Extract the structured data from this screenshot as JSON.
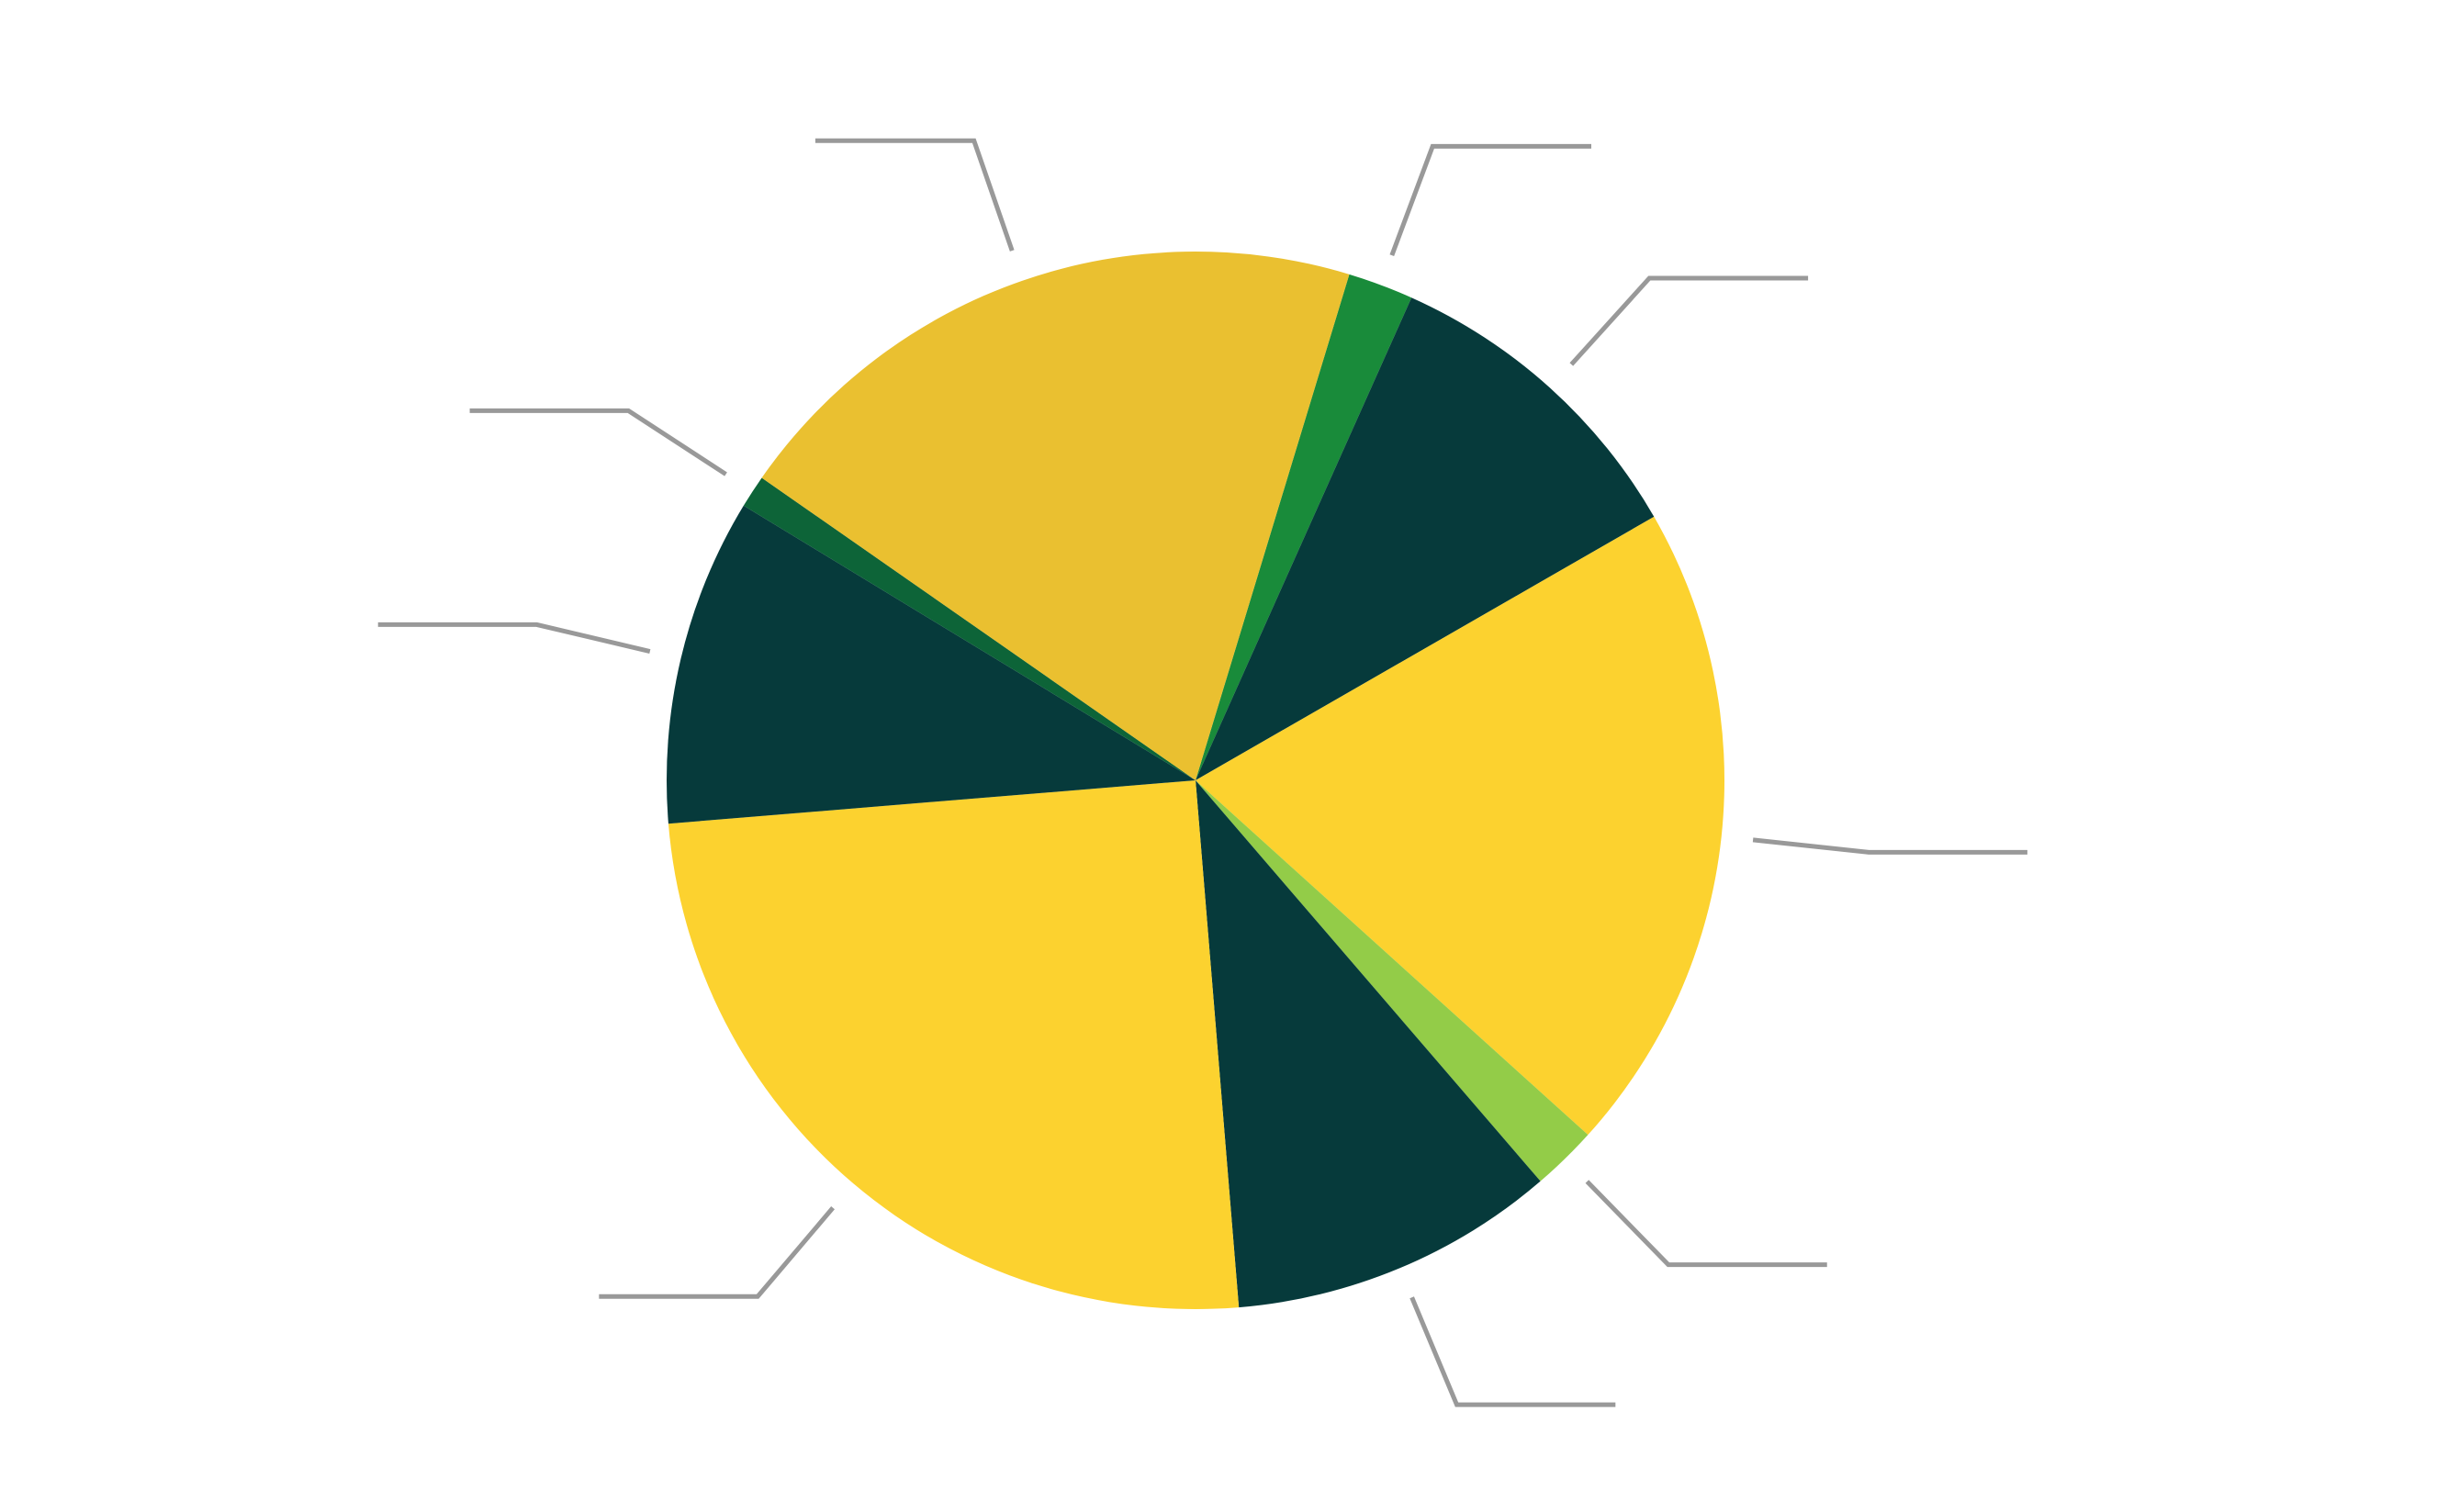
{
  "chart_data": {
    "type": "pie",
    "values": [
      2,
      10,
      20,
      2,
      10,
      25,
      10,
      1,
      20
    ],
    "colors": [
      "#198b3a",
      "#063a3b",
      "#fcd22f",
      "#93cc48",
      "#063a3b",
      "#fcd22f",
      "#063a3b",
      "#0d6438",
      "#eac030"
    ]
  }
}
